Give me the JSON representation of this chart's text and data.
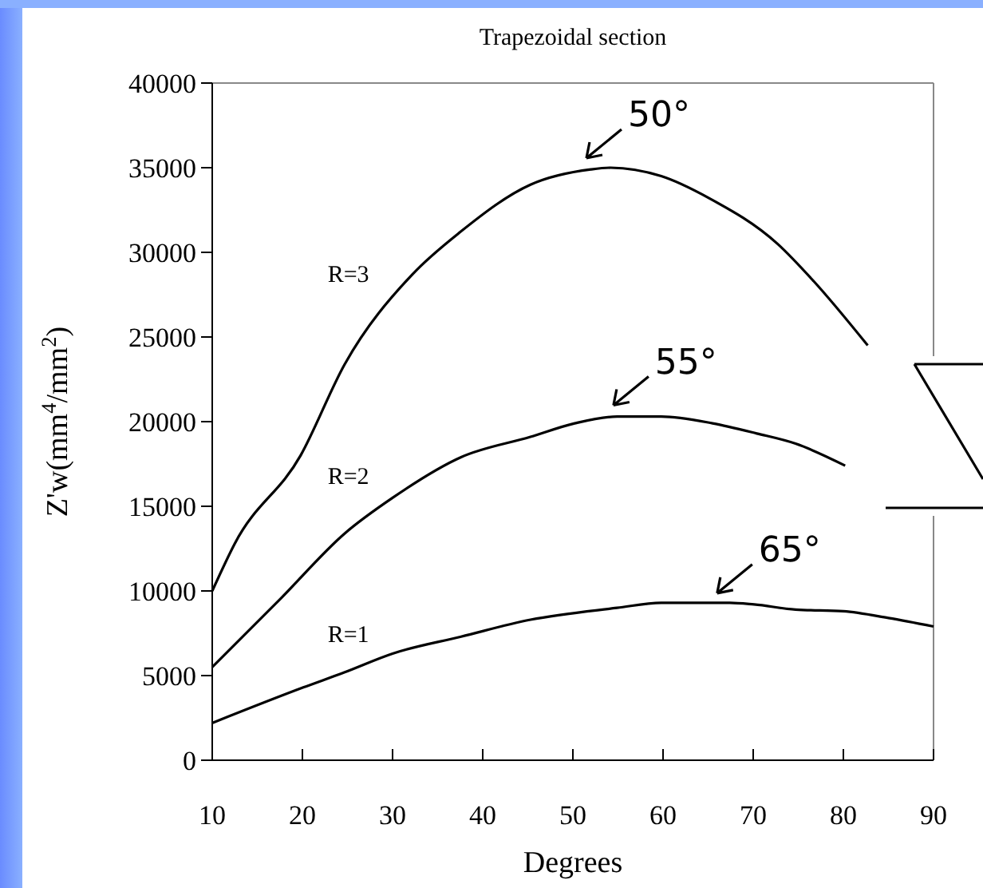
{
  "chart_data": {
    "type": "line",
    "title": "Trapezoidal section",
    "xlabel": "Degrees",
    "ylabel": "Z'w(mm$^{4}$/mm$^{2}$)",
    "xlim": [
      10,
      90
    ],
    "xticks": [
      10,
      20,
      30,
      40,
      50,
      60,
      70,
      80,
      90
    ],
    "ylim": [
      0,
      40000
    ],
    "yticks": [
      0,
      5000,
      10000,
      15000,
      20000,
      25000,
      30000,
      35000,
      40000
    ],
    "grid": false,
    "marker": "none",
    "line_style": "solid",
    "series": [
      {
        "name": "R=3",
        "color": "#000000",
        "x": [
          10,
          12.5,
          19.8,
          24.7,
          32.2,
          37.5,
          45.3,
          52,
          54.2,
          59.8,
          65.1,
          72.7,
          76.7,
          82.7
        ],
        "values": [
          10000,
          12800,
          18000,
          23400,
          28700,
          31200,
          34000,
          34900,
          35000,
          34500,
          33200,
          30500,
          28300,
          24500
        ]
      },
      {
        "name": "R=2",
        "color": "#000000",
        "x": [
          10,
          17.5,
          24.7,
          30,
          37.6,
          45.3,
          50.2,
          54.9,
          59.8,
          65.5,
          70.4,
          74.7,
          80.2
        ],
        "values": [
          5500,
          9500,
          13400,
          15500,
          17900,
          19100,
          19900,
          20300,
          20300,
          19900,
          19300,
          18700,
          17400
        ]
      },
      {
        "name": "R=1",
        "color": "#000000",
        "x": [
          10,
          20.1,
          24.7,
          30,
          37.6,
          45.3,
          54.9,
          59.8,
          62.3,
          67.4,
          70.1,
          74.7,
          80,
          85,
          90
        ],
        "values": [
          2200,
          4300,
          5200,
          6300,
          7300,
          8300,
          9000,
          9300,
          9300,
          9300,
          9200,
          8900,
          8800,
          8400,
          7900
        ]
      }
    ],
    "annotations": [
      {
        "text": "50°",
        "x": 51.5,
        "y": 35000
      },
      {
        "text": "55°",
        "x": 54.5,
        "y": 20400
      },
      {
        "text": "65°",
        "x": 66,
        "y": 9300
      }
    ]
  }
}
